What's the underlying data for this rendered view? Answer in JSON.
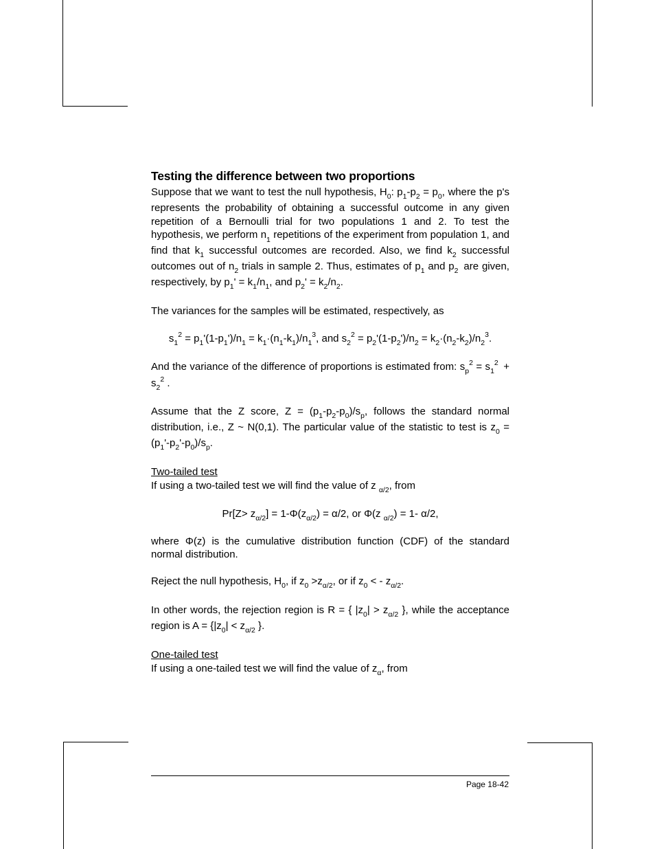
{
  "heading": "Testing the difference between two proportions",
  "p1_part1": "Suppose that we want to test the null hypothesis, H",
  "p1_part2": ": p",
  "p1_part3": "-p",
  "p1_part4": " = p",
  "p1_part5": ", where the p's represents the probability of obtaining a successful outcome in any given repetition of a Bernoulli trial for two populations 1 and 2.  To test the hypothesis, we perform n",
  "p1_part6": " repetitions of the experiment from population 1, and find that k",
  "p1_part7": " successful outcomes are recorded.  Also, we find k",
  "p1_part8": " successful outcomes out of n",
  "p1_part9": " trials in sample 2.  Thus, estimates of p",
  "p1_part10": " and p",
  "p1_part11": " are given, respectively, by p",
  "p1_part12": "' = k",
  "p1_part13": "/n",
  "p1_part14": ", and p",
  "p1_part15": "' = k",
  "p1_part16": "/n",
  "p1_part17": ".",
  "p2": "The variances for the samples will be estimated, respectively, as",
  "f1_1": "s",
  "f1_2": " = p",
  "f1_3": "'(1-p",
  "f1_4": "')/n",
  "f1_5": " = k",
  "f1_6": "·(n",
  "f1_7": "-k",
  "f1_8": ")/n",
  "f1_9": ", and s",
  "f1_10": " = p",
  "f1_11": "'(1-p",
  "f1_12": "')/n",
  "f1_13": " = k",
  "f1_14": "·(n",
  "f1_15": "-k",
  "f1_16": ")/n",
  "f1_17": ".",
  "p3_1": "And the variance of the difference of proportions is estimated from: s",
  "p3_2": " = s",
  "p3_3": " + s",
  "p3_4": " .",
  "p4_1": "Assume that the Z score, Z = (p",
  "p4_2": "-p",
  "p4_3": "-p",
  "p4_4": ")/s",
  "p4_5": ", follows the standard normal distribution, i.e., Z ~ N(0,1).  The particular value of the statistic to test is z",
  "p4_6": " = (p",
  "p4_7": "'-p",
  "p4_8": "'-p",
  "p4_9": ")/s",
  "p4_10": ".",
  "h2a": "Two-tailed test",
  "p5_1": "If using a two-tailed test we will find the value of  z ",
  "p5_2": ", from",
  "f2_1": "Pr[Z> z",
  "f2_2": "] = 1-Φ(z",
  "f2_3": ") = α/2,  or Φ(z ",
  "f2_4": ") = 1- α/2,",
  "p6": "where Φ(z) is the cumulative distribution function (CDF) of the standard normal distribution.",
  "p7_1": "Reject the null hypothesis, H",
  "p7_2": ", if z",
  "p7_3": " >z",
  "p7_4": ", or if z",
  "p7_5": " < - z",
  "p7_6": ".",
  "p8_1": "In other words, the rejection region is R = { |z",
  "p8_2": "| > z",
  "p8_3": " }, while the acceptance region is A = {|z",
  "p8_4": "| < z",
  "p8_5": " }.",
  "h2b": "One-tailed test",
  "p9_1": "If using a one-tailed test we will find the value of  z",
  "p9_2": ", from",
  "sub0": "0",
  "sub1": "1",
  "sub2": "2",
  "sub3": "3",
  "subp": "p",
  "suba2": "α/2",
  "suba": "α",
  "sup2": "2",
  "page_label": "Page 18-42"
}
